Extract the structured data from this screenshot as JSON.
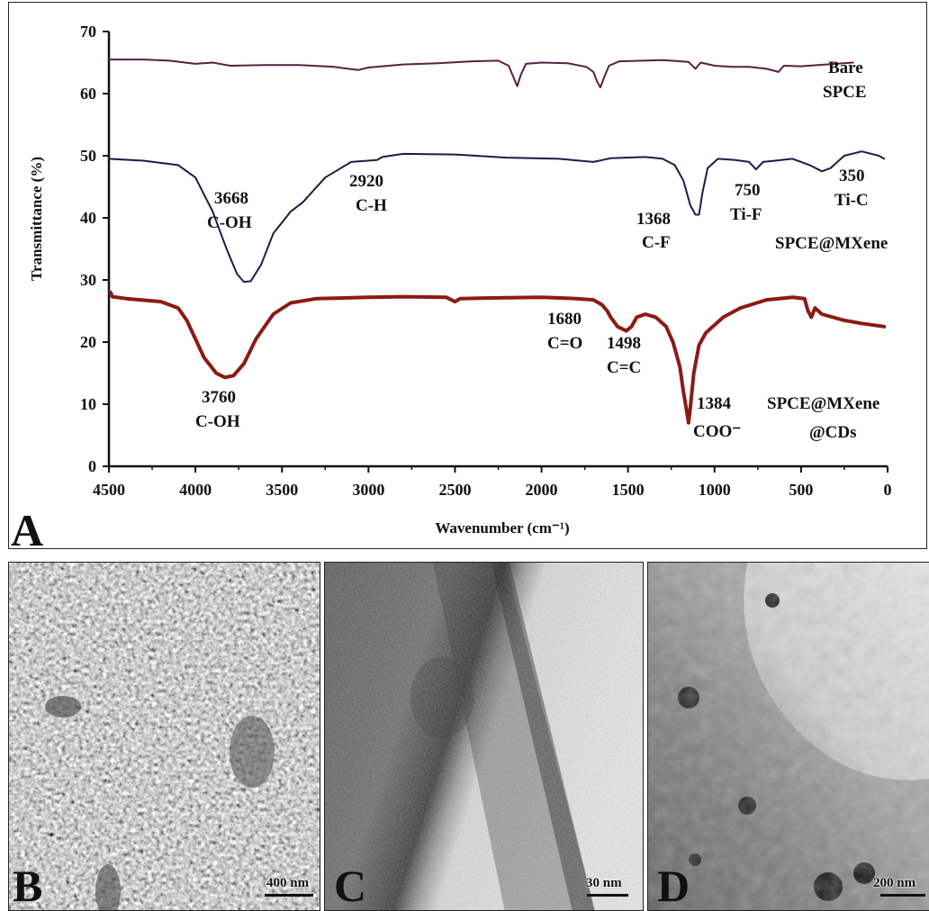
{
  "chart_data": {
    "type": "line",
    "xlabel": "Wavenumber (cm⁻¹)",
    "ylabel": "Transmittance (%)",
    "xlim": [
      4500,
      0
    ],
    "ylim": [
      0,
      70
    ],
    "x_ticks": [
      4500,
      4000,
      3500,
      3000,
      2500,
      2000,
      1500,
      1000,
      500,
      0
    ],
    "y_ticks": [
      0,
      10,
      20,
      30,
      40,
      50,
      60,
      70
    ],
    "panel_label": "A",
    "series": [
      {
        "name": "Bare SPCE",
        "color": "#5a1f45",
        "points": [
          [
            4500,
            65.5
          ],
          [
            4300,
            65.5
          ],
          [
            4150,
            65.3
          ],
          [
            4000,
            64.8
          ],
          [
            3900,
            65.0
          ],
          [
            3800,
            64.5
          ],
          [
            3600,
            64.6
          ],
          [
            3400,
            64.6
          ],
          [
            3200,
            64.3
          ],
          [
            3060,
            63.8
          ],
          [
            3000,
            64.2
          ],
          [
            2800,
            64.7
          ],
          [
            2600,
            64.9
          ],
          [
            2400,
            65.2
          ],
          [
            2250,
            65.3
          ],
          [
            2190,
            64.5
          ],
          [
            2160,
            62.5
          ],
          [
            2140,
            61.2
          ],
          [
            2120,
            63.0
          ],
          [
            2090,
            64.8
          ],
          [
            2000,
            65.0
          ],
          [
            1850,
            64.9
          ],
          [
            1740,
            64.3
          ],
          [
            1700,
            63.5
          ],
          [
            1680,
            62.0
          ],
          [
            1660,
            61.0
          ],
          [
            1640,
            62.5
          ],
          [
            1610,
            64.5
          ],
          [
            1550,
            65.2
          ],
          [
            1300,
            65.4
          ],
          [
            1150,
            65.1
          ],
          [
            1110,
            64.0
          ],
          [
            1080,
            65.0
          ],
          [
            1000,
            64.5
          ],
          [
            900,
            64.3
          ],
          [
            800,
            64.3
          ],
          [
            700,
            64.0
          ],
          [
            630,
            63.5
          ],
          [
            600,
            64.5
          ],
          [
            500,
            64.4
          ],
          [
            400,
            64.6
          ],
          [
            300,
            64.8
          ],
          [
            200,
            65.0
          ]
        ]
      },
      {
        "name": "SPCE@MXene",
        "color": "#1c1c4a",
        "points": [
          [
            4500,
            49.5
          ],
          [
            4300,
            49.2
          ],
          [
            4100,
            48.5
          ],
          [
            4000,
            46.5
          ],
          [
            3900,
            41.0
          ],
          [
            3820,
            35.0
          ],
          [
            3760,
            31.0
          ],
          [
            3720,
            29.7
          ],
          [
            3680,
            29.8
          ],
          [
            3620,
            32.5
          ],
          [
            3550,
            37.5
          ],
          [
            3450,
            41.0
          ],
          [
            3380,
            42.5
          ],
          [
            3250,
            46.5
          ],
          [
            3100,
            49.0
          ],
          [
            2950,
            49.3
          ],
          [
            2920,
            49.8
          ],
          [
            2800,
            50.3
          ],
          [
            2500,
            50.2
          ],
          [
            2200,
            49.7
          ],
          [
            1900,
            49.5
          ],
          [
            1700,
            49.0
          ],
          [
            1600,
            49.6
          ],
          [
            1400,
            49.8
          ],
          [
            1300,
            49.5
          ],
          [
            1230,
            48.5
          ],
          [
            1180,
            46.0
          ],
          [
            1140,
            42.0
          ],
          [
            1110,
            40.5
          ],
          [
            1090,
            40.5
          ],
          [
            1070,
            44.0
          ],
          [
            1040,
            48.0
          ],
          [
            980,
            49.5
          ],
          [
            880,
            49.3
          ],
          [
            800,
            49.0
          ],
          [
            760,
            47.8
          ],
          [
            720,
            49.0
          ],
          [
            650,
            49.2
          ],
          [
            550,
            49.5
          ],
          [
            450,
            48.5
          ],
          [
            380,
            47.5
          ],
          [
            330,
            48.0
          ],
          [
            250,
            50.0
          ],
          [
            150,
            50.7
          ],
          [
            50,
            50.0
          ],
          [
            20,
            49.5
          ]
        ]
      },
      {
        "name": "SPCE@MXene@CDs",
        "color": "#8b1a15",
        "points": [
          [
            4490,
            28.0
          ],
          [
            4480,
            27.3
          ],
          [
            4400,
            27.0
          ],
          [
            4200,
            26.5
          ],
          [
            4100,
            25.5
          ],
          [
            4050,
            23.5
          ],
          [
            4000,
            20.5
          ],
          [
            3950,
            17.5
          ],
          [
            3880,
            15.0
          ],
          [
            3830,
            14.3
          ],
          [
            3780,
            14.6
          ],
          [
            3720,
            16.5
          ],
          [
            3650,
            20.5
          ],
          [
            3550,
            24.5
          ],
          [
            3450,
            26.3
          ],
          [
            3300,
            27.0
          ],
          [
            3000,
            27.2
          ],
          [
            2800,
            27.3
          ],
          [
            2550,
            27.2
          ],
          [
            2500,
            26.5
          ],
          [
            2470,
            27.0
          ],
          [
            2300,
            27.1
          ],
          [
            2000,
            27.2
          ],
          [
            1800,
            27.0
          ],
          [
            1700,
            26.8
          ],
          [
            1650,
            26.0
          ],
          [
            1620,
            25.0
          ],
          [
            1600,
            24.0
          ],
          [
            1560,
            22.5
          ],
          [
            1510,
            21.8
          ],
          [
            1480,
            22.5
          ],
          [
            1450,
            24.0
          ],
          [
            1400,
            24.5
          ],
          [
            1340,
            24.0
          ],
          [
            1280,
            22.5
          ],
          [
            1240,
            20.0
          ],
          [
            1200,
            16.0
          ],
          [
            1180,
            12.0
          ],
          [
            1165,
            9.5
          ],
          [
            1150,
            7.0
          ],
          [
            1140,
            9.5
          ],
          [
            1120,
            15.0
          ],
          [
            1090,
            19.5
          ],
          [
            1050,
            21.5
          ],
          [
            950,
            24.0
          ],
          [
            850,
            25.5
          ],
          [
            700,
            26.8
          ],
          [
            550,
            27.2
          ],
          [
            480,
            27.0
          ],
          [
            460,
            25.0
          ],
          [
            440,
            24.0
          ],
          [
            420,
            25.5
          ],
          [
            380,
            24.5
          ],
          [
            250,
            23.5
          ],
          [
            150,
            23.0
          ],
          [
            20,
            22.5
          ]
        ]
      }
    ],
    "legend_labels": {
      "bare_line1": "Bare",
      "bare_line2": "SPCE",
      "mxene": "SPCE@MXene",
      "cds_line1": "SPCE@MXene",
      "cds_line2": "@CDs"
    },
    "annotations": [
      {
        "wn": "3668",
        "group": "C-OH"
      },
      {
        "wn": "2920",
        "group": "C-H"
      },
      {
        "wn": "1368",
        "group": "C-F"
      },
      {
        "wn": "750",
        "group": "Ti-F"
      },
      {
        "wn": "350",
        "group": "Ti-C"
      },
      {
        "wn": "1680",
        "group": "C=O"
      },
      {
        "wn": "1498",
        "group": "C=C"
      },
      {
        "wn": "3760",
        "group": "C-OH"
      },
      {
        "wn": "1384",
        "group": "COO⁻"
      }
    ]
  },
  "micrographs": [
    {
      "letter": "B",
      "scale": "400 nm"
    },
    {
      "letter": "C",
      "scale": "30 nm"
    },
    {
      "letter": "D",
      "scale": "200 nm"
    }
  ]
}
